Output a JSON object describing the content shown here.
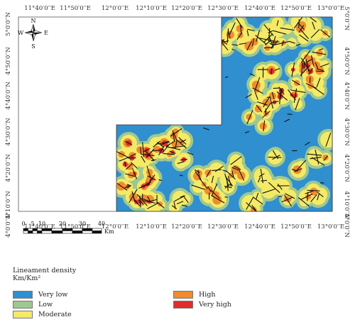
{
  "map": {
    "x_ticks": [
      "11°40′0′′E",
      "11°50′0′′E",
      "12°0′0′′E",
      "12°10′0′′E",
      "12°20′0′′E",
      "12°30′0′′E",
      "12°40′0′′E",
      "12°50′0′′E",
      "13°0′0′′E"
    ],
    "y_ticks": [
      "5°0′0′′N",
      "4°50′0′′N",
      "4°40′0′′N",
      "4°30′0′′N",
      "4°20′0′′N",
      "4°10′0′′N",
      "4°0′0′′N"
    ],
    "north_arrow": {
      "n": "N",
      "s": "S",
      "e": "E",
      "w": "W"
    },
    "scale_bar": {
      "labels": [
        "0",
        "5",
        "10",
        "20",
        "30",
        "40"
      ],
      "unit": "Km"
    },
    "colors": {
      "very_low": "#2f8fcf",
      "low": "#9fc890",
      "moderate": "#f4ea66",
      "high": "#f08b2f",
      "very_high": "#e02c2a",
      "lineament": "#111111"
    }
  },
  "legend": {
    "title": "Lineament density",
    "unit": "Km/Km²",
    "items": [
      {
        "label": "Very low",
        "color": "#2f8fcf"
      },
      {
        "label": "Low",
        "color": "#9fc890"
      },
      {
        "label": "Moderate",
        "color": "#f4ea66"
      },
      {
        "label": "High",
        "color": "#f08b2f"
      },
      {
        "label": "Very high",
        "color": "#e02c2a"
      }
    ]
  }
}
